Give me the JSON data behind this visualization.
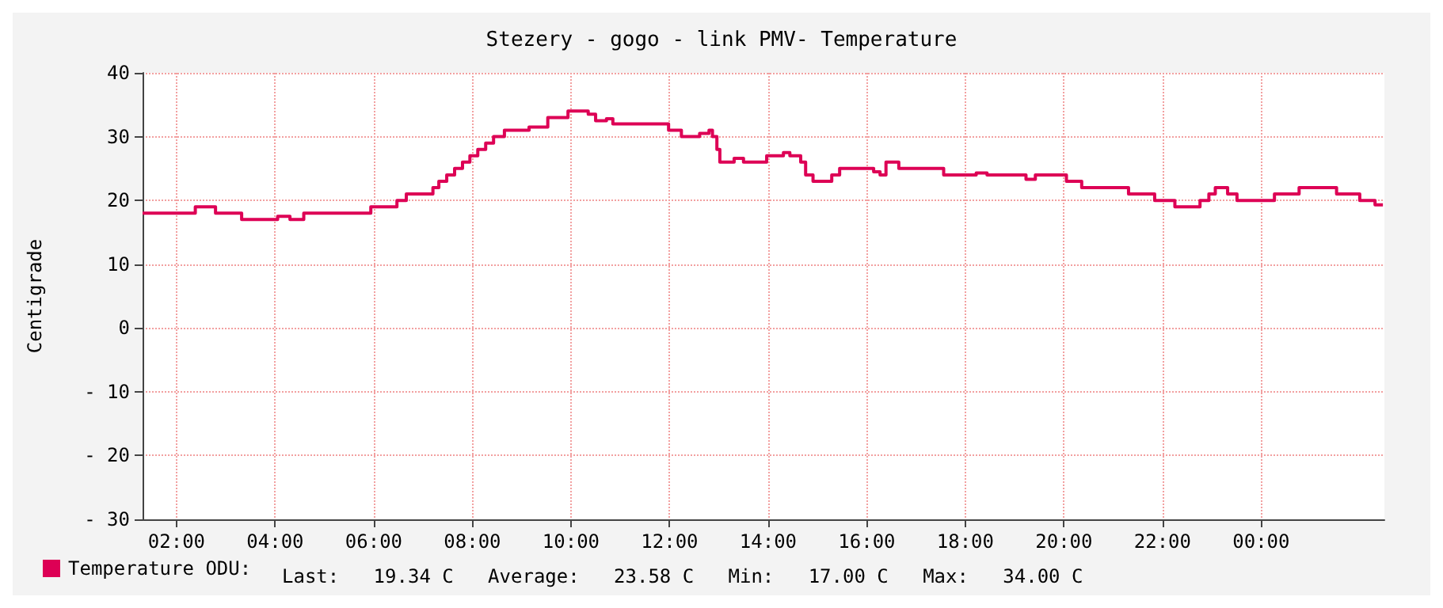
{
  "chart_data": {
    "type": "step",
    "title": "Stezery - gogo - link PMV- Temperature",
    "ylabel": "Centigrade",
    "x": [
      1.31,
      2.38,
      2.79,
      3.32,
      4.05,
      4.3,
      4.58,
      5.94,
      6.47,
      6.66,
      7.2,
      7.32,
      7.48,
      7.64,
      7.8,
      7.95,
      8.11,
      8.27,
      8.43,
      8.65,
      9.15,
      9.53,
      9.94,
      10.35,
      10.5,
      10.72,
      10.85,
      11.98,
      12.24,
      12.61,
      12.8,
      12.87,
      12.96,
      13.02,
      13.31,
      13.5,
      13.97,
      14.31,
      14.44,
      14.66,
      14.76,
      14.91,
      15.29,
      15.45,
      16.14,
      16.27,
      16.39,
      16.65,
      17.56,
      18.22,
      18.44,
      19.23,
      19.42,
      20.05,
      20.36,
      21.31,
      21.84,
      22.25,
      22.76,
      22.94,
      23.07,
      23.32,
      23.51,
      24.27,
      24.77,
      25.53,
      26,
      26.31,
      26.47
    ],
    "series": [
      {
        "name": "Temperature ODU:",
        "color": "#dd0055",
        "values": [
          18,
          19,
          18,
          17,
          17.5,
          17,
          18,
          19,
          20,
          21,
          22,
          23,
          24,
          25,
          26,
          27,
          28,
          29,
          30,
          31,
          31.5,
          33,
          34,
          33.5,
          32.5,
          32.8,
          32,
          31,
          30,
          30.5,
          31,
          30,
          28,
          26,
          26.6,
          26,
          27,
          27.5,
          27,
          26,
          24,
          23,
          24,
          25,
          24.5,
          24,
          26,
          25,
          24,
          24.3,
          24,
          23.3,
          24,
          23,
          22,
          21,
          20,
          19,
          20,
          21,
          22,
          21,
          20,
          21,
          22,
          21,
          20,
          19.3,
          19.3
        ]
      }
    ],
    "xlim": [
      1.31,
      26.5
    ],
    "xticks": [
      {
        "value": 2,
        "label": "02:00"
      },
      {
        "value": 4,
        "label": "04:00"
      },
      {
        "value": 6,
        "label": "06:00"
      },
      {
        "value": 8,
        "label": "08:00"
      },
      {
        "value": 10,
        "label": "10:00"
      },
      {
        "value": 12,
        "label": "12:00"
      },
      {
        "value": 14,
        "label": "14:00"
      },
      {
        "value": 16,
        "label": "16:00"
      },
      {
        "value": 18,
        "label": "18:00"
      },
      {
        "value": 20,
        "label": "20:00"
      },
      {
        "value": 22,
        "label": "22:00"
      },
      {
        "value": 24,
        "label": "00:00"
      }
    ],
    "ylim": [
      -30,
      40
    ],
    "yticks": [
      {
        "value": -30,
        "label": "- 30"
      },
      {
        "value": -20,
        "label": "- 20"
      },
      {
        "value": -10,
        "label": "- 10"
      },
      0,
      10,
      20,
      30,
      40
    ],
    "grid": true,
    "legend": "bottom left",
    "annotations": [
      "Last:   19.34 C",
      "Average:   23.58 C",
      "Min:   17.00 C",
      "Max:   34.00 C"
    ]
  }
}
